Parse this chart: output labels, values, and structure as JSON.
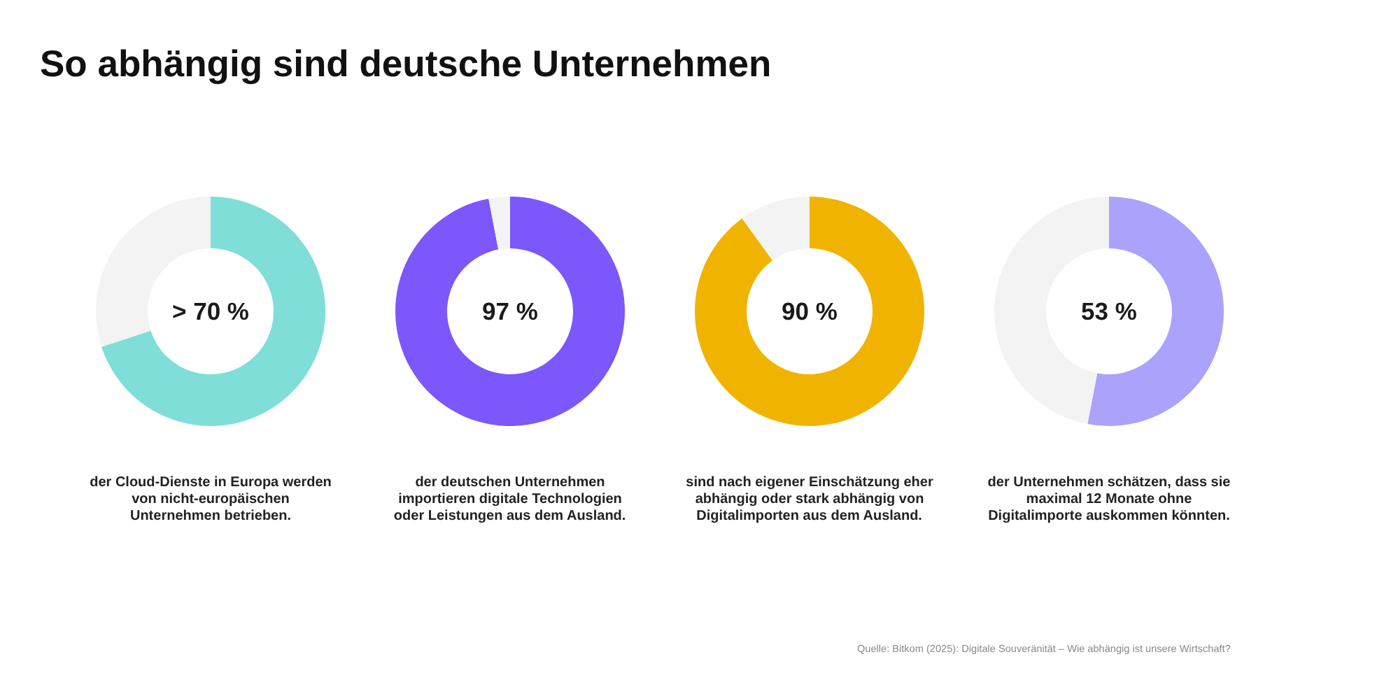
{
  "chart_data": [
    {
      "type": "donut",
      "title": "So abhängig sind deutsche Unternehmen",
      "categories": [
        null,
        null
      ],
      "values": [
        70,
        30
      ],
      "colors": [
        "#7fded8",
        "#f3f3f3"
      ],
      "value_labels": [
        "> 70 %",
        null
      ],
      "annotations": [
        "der Cloud-Dienste in Europa werden\nvon nicht-europäischen\nUnternehmen betrieben."
      ]
    },
    {
      "type": "donut",
      "categories": [
        null,
        null
      ],
      "values": [
        97,
        3
      ],
      "colors": [
        "#7b57fc",
        "#f3f3f3"
      ],
      "value_labels": [
        "97 %",
        null
      ],
      "annotations": [
        "der deutschen Unternehmen\nimportieren digitale Technologien\noder Leistungen aus dem Ausland."
      ]
    },
    {
      "type": "donut",
      "categories": [
        null,
        null
      ],
      "values": [
        90,
        10
      ],
      "colors": [
        "#f0b400",
        "#f3f3f3"
      ],
      "value_labels": [
        "90 %",
        null
      ],
      "annotations": [
        "sind nach eigener Einschätzung eher\nabhängig oder stark abhängig von\nDigitalimporten aus dem Ausland."
      ]
    },
    {
      "type": "donut",
      "categories": [
        null,
        null
      ],
      "values": [
        53,
        47
      ],
      "colors": [
        "#aaa2fb",
        "#f3f3f3"
      ],
      "value_labels": [
        "53 %",
        null
      ],
      "annotations": [
        "der Unternehmen schätzen, dass sie\nmaximal 12 Monate ohne\nDigitalimporte auskommen könnten.",
        "Quelle: Bitkom (2025): Digitale Souveränität – Wie abhängig ist unsere Wirtschaft?"
      ]
    }
  ]
}
